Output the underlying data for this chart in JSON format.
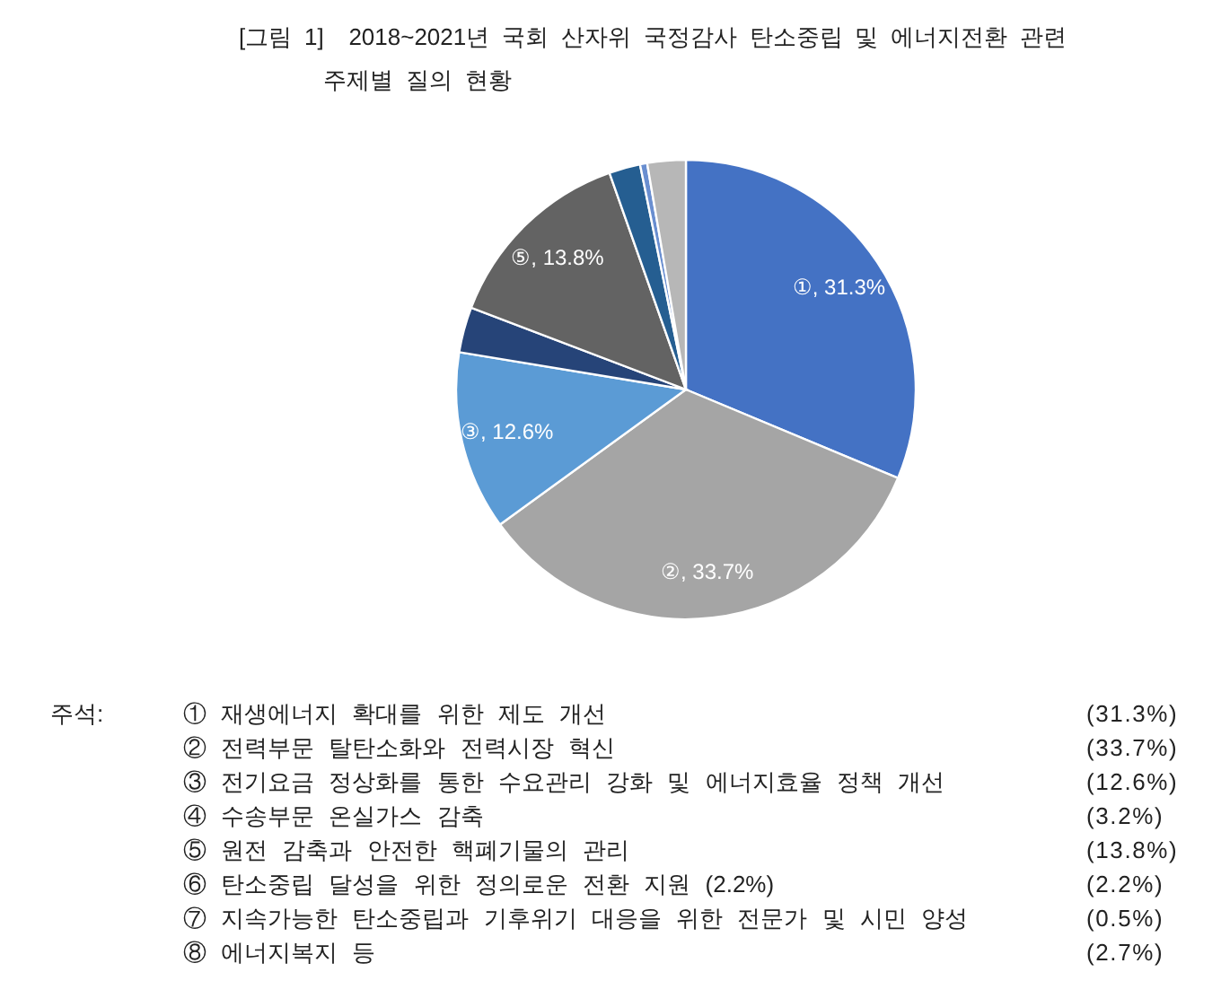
{
  "chart_data": {
    "type": "pie",
    "title": "[그림 1]  2018~2021년 국회 산자위 국정감사 탄소중립 및 에너지전환 관련 주제별 질의 현황",
    "categories": [
      "①",
      "②",
      "③",
      null,
      "⑤",
      null,
      null,
      null
    ],
    "values": [
      31.3,
      33.7,
      12.6,
      3.2,
      13.8,
      2.2,
      0.5,
      2.7
    ],
    "colors": [
      "#4472c4",
      "#a5a5a5",
      "#5b9bd5",
      "#264478",
      "#636363",
      "#255e91",
      "#698ed0",
      "#b7b7b7"
    ],
    "value_labels": [
      ", 31.3%",
      ", 33.7%",
      ", 12.6%",
      null,
      ", 13.8%",
      null,
      null,
      null
    ],
    "annotations": [
      "주석:",
      "① 재생에너지 확대를 위한 제도 개선",
      "(31.3%)",
      "② 전력부문 탈탄소화와 전력시장 혁신",
      "(33.7%)",
      "③ 전기요금 정상화를 통한 수요관리 강화 및 에너지효율 정책 개선",
      "(12.6%)",
      "④ 수송부문 온실가스 감축",
      "(3.2%)",
      "⑤ 원전 감축과 안전한 핵폐기물의 관리",
      "(13.8%)",
      "⑥ 탄소중립 달성을 위한 정의로운 전환 지원 (2.2%)",
      "(2.2%)",
      "⑦ 지속가능한 탄소중립과 기후위기 대응을 위한 전문가 및 시민 양성",
      "(0.5%)",
      "⑧ 에너지복지 등",
      "(2.7%)"
    ]
  }
}
